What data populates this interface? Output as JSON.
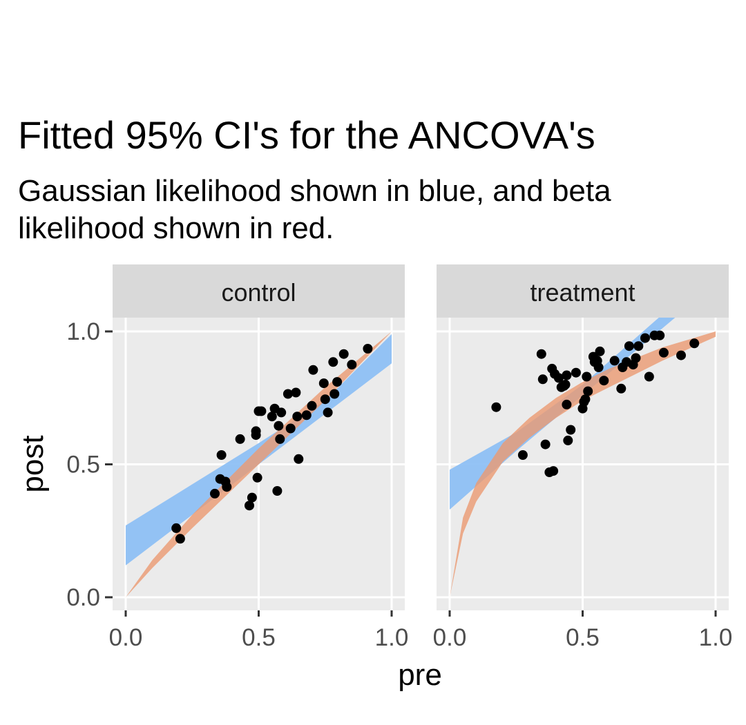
{
  "chart_data": {
    "type": "scatter",
    "title": "Fitted 95% CI's for the ANCOVA's",
    "subtitle": "Gaussian likelihood shown in blue, and beta likelihood shown in red.",
    "xlabel": "pre",
    "ylabel": "post",
    "xlim": [
      0,
      1
    ],
    "ylim": [
      0,
      1
    ],
    "x_ticks": [
      "0.0",
      "0.5",
      "1.0"
    ],
    "y_ticks": [
      "0.0",
      "0.5",
      "1.0"
    ],
    "grid": true,
    "colors": {
      "gaussian_band": "#8ec0f4",
      "beta_band": "#eb9a72",
      "points": "#000000",
      "panel_bg": "#ebebeb",
      "strip_bg": "#d9d9d9",
      "grid": "#ffffff"
    },
    "panels": [
      {
        "label": "control",
        "gaussian_band": {
          "x": [
            0.0,
            0.25,
            0.5,
            0.75,
            1.0
          ],
          "lower": [
            0.12,
            0.31,
            0.5,
            0.69,
            0.88
          ],
          "upper": [
            0.27,
            0.425,
            0.58,
            0.74,
            0.99
          ]
        },
        "beta_band": {
          "x": [
            0.0,
            0.1,
            0.25,
            0.5,
            0.75,
            1.0
          ],
          "lower": [
            0.0,
            0.11,
            0.26,
            0.5,
            0.74,
            1.0
          ],
          "upper": [
            0.0,
            0.14,
            0.31,
            0.56,
            0.79,
            1.0
          ]
        },
        "points": {
          "x": [
            0.19,
            0.205,
            0.335,
            0.355,
            0.36,
            0.375,
            0.38,
            0.43,
            0.465,
            0.475,
            0.49,
            0.49,
            0.495,
            0.5,
            0.51,
            0.55,
            0.56,
            0.57,
            0.575,
            0.58,
            0.585,
            0.61,
            0.62,
            0.64,
            0.645,
            0.65,
            0.68,
            0.7,
            0.705,
            0.745,
            0.75,
            0.76,
            0.78,
            0.785,
            0.795,
            0.82,
            0.85,
            0.91
          ],
          "y": [
            0.26,
            0.22,
            0.39,
            0.445,
            0.535,
            0.435,
            0.415,
            0.595,
            0.345,
            0.375,
            0.625,
            0.61,
            0.45,
            0.7,
            0.7,
            0.68,
            0.71,
            0.4,
            0.645,
            0.595,
            0.695,
            0.765,
            0.635,
            0.77,
            0.68,
            0.52,
            0.685,
            0.72,
            0.855,
            0.805,
            0.745,
            0.695,
            0.885,
            0.765,
            0.81,
            0.915,
            0.875,
            0.935
          ]
        }
      },
      {
        "label": "treatment",
        "gaussian_band": {
          "x": [
            0.0,
            0.25,
            0.5,
            0.75,
            1.0
          ],
          "lower": [
            0.33,
            0.55,
            0.76,
            0.97,
            1.18
          ],
          "upper": [
            0.48,
            0.62,
            0.8,
            1.02,
            1.24
          ]
        },
        "beta_band": {
          "x": [
            0.0,
            0.05,
            0.1,
            0.2,
            0.3,
            0.4,
            0.5,
            0.6,
            0.7,
            0.8,
            0.9,
            1.0
          ],
          "lower": [
            0.0,
            0.24,
            0.36,
            0.51,
            0.6,
            0.675,
            0.74,
            0.79,
            0.84,
            0.89,
            0.935,
            0.98
          ],
          "upper": [
            0.0,
            0.3,
            0.43,
            0.58,
            0.675,
            0.75,
            0.81,
            0.86,
            0.9,
            0.94,
            0.97,
            1.0
          ]
        },
        "points": {
          "x": [
            0.175,
            0.275,
            0.345,
            0.35,
            0.36,
            0.375,
            0.39,
            0.385,
            0.395,
            0.41,
            0.42,
            0.43,
            0.435,
            0.44,
            0.44,
            0.445,
            0.455,
            0.475,
            0.5,
            0.505,
            0.51,
            0.515,
            0.52,
            0.54,
            0.545,
            0.555,
            0.56,
            0.565,
            0.58,
            0.62,
            0.645,
            0.65,
            0.665,
            0.675,
            0.69,
            0.7,
            0.71,
            0.735,
            0.75,
            0.77,
            0.79,
            0.805,
            0.87,
            0.92
          ],
          "y": [
            0.715,
            0.535,
            0.915,
            0.82,
            0.575,
            0.47,
            0.475,
            0.86,
            0.84,
            0.825,
            0.79,
            0.795,
            0.8,
            0.835,
            0.725,
            0.59,
            0.63,
            0.845,
            0.71,
            0.735,
            0.745,
            0.83,
            0.775,
            0.905,
            0.885,
            0.89,
            0.865,
            0.925,
            0.815,
            0.89,
            0.785,
            0.865,
            0.885,
            0.945,
            0.875,
            0.9,
            0.945,
            0.975,
            0.83,
            0.985,
            0.985,
            0.92,
            0.91,
            0.955
          ]
        }
      }
    ]
  }
}
